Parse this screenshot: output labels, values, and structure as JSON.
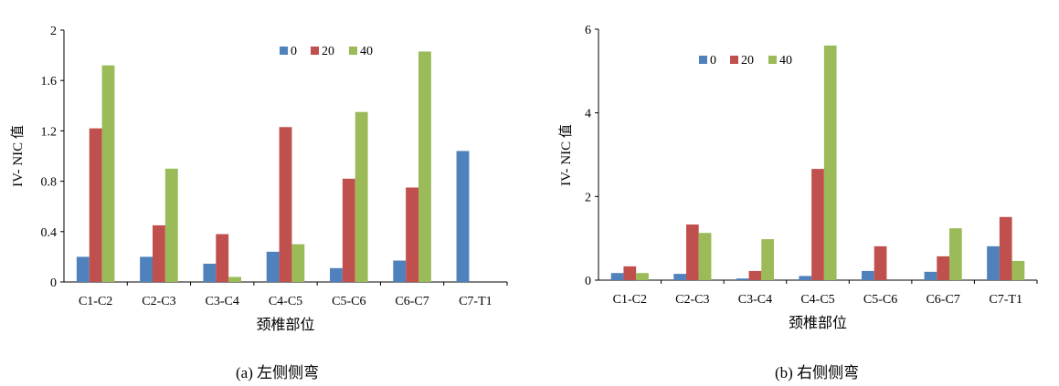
{
  "chart_data": [
    {
      "type": "bar",
      "title": "",
      "xlabel": "颈椎部位",
      "ylabel": "IV- NIC 值",
      "caption": "(a)  左侧侧弯",
      "categories": [
        "C1-C2",
        "C2-C3",
        "C3-C4",
        "C4-C5",
        "C5-C6",
        "C6-C7",
        "C7-T1"
      ],
      "ylim": [
        0,
        2
      ],
      "yticks": [
        "0",
        "0.4",
        "0.8",
        "1.2",
        "1.6",
        "2"
      ],
      "ytick_values": [
        0,
        0.4,
        0.8,
        1.2,
        1.6,
        2
      ],
      "legend_position": "top-center",
      "series": [
        {
          "name": "0",
          "color": "#4f81bd",
          "values": [
            0.2,
            0.2,
            0.145,
            0.24,
            0.11,
            0.17,
            1.04
          ]
        },
        {
          "name": "20",
          "color": "#c0504d",
          "values": [
            1.22,
            0.45,
            0.38,
            1.23,
            0.82,
            0.75,
            0
          ]
        },
        {
          "name": "40",
          "color": "#9bbb59",
          "values": [
            1.72,
            0.9,
            0.04,
            0.3,
            1.35,
            1.83,
            0
          ]
        }
      ]
    },
    {
      "type": "bar",
      "title": "",
      "xlabel": "颈椎部位",
      "ylabel": "IV- NIC 值",
      "caption": "(b)  右侧侧弯",
      "categories": [
        "C1-C2",
        "C2-C3",
        "C3-C4",
        "C4-C5",
        "C5-C6",
        "C6-C7",
        "C7-T1"
      ],
      "ylim": [
        0,
        6
      ],
      "yticks": [
        "0",
        "2",
        "4",
        "6"
      ],
      "ytick_values": [
        0,
        2,
        4,
        6
      ],
      "legend_position": "top-left",
      "series": [
        {
          "name": "0",
          "color": "#4f81bd",
          "values": [
            0.17,
            0.15,
            0.04,
            0.1,
            0.22,
            0.2,
            0.81
          ]
        },
        {
          "name": "20",
          "color": "#c0504d",
          "values": [
            0.33,
            1.33,
            0.22,
            2.66,
            0.81,
            0.57,
            1.51
          ]
        },
        {
          "name": "40",
          "color": "#9bbb59",
          "values": [
            0.17,
            1.13,
            0.98,
            5.61,
            0,
            1.24,
            0.46
          ]
        }
      ]
    }
  ]
}
